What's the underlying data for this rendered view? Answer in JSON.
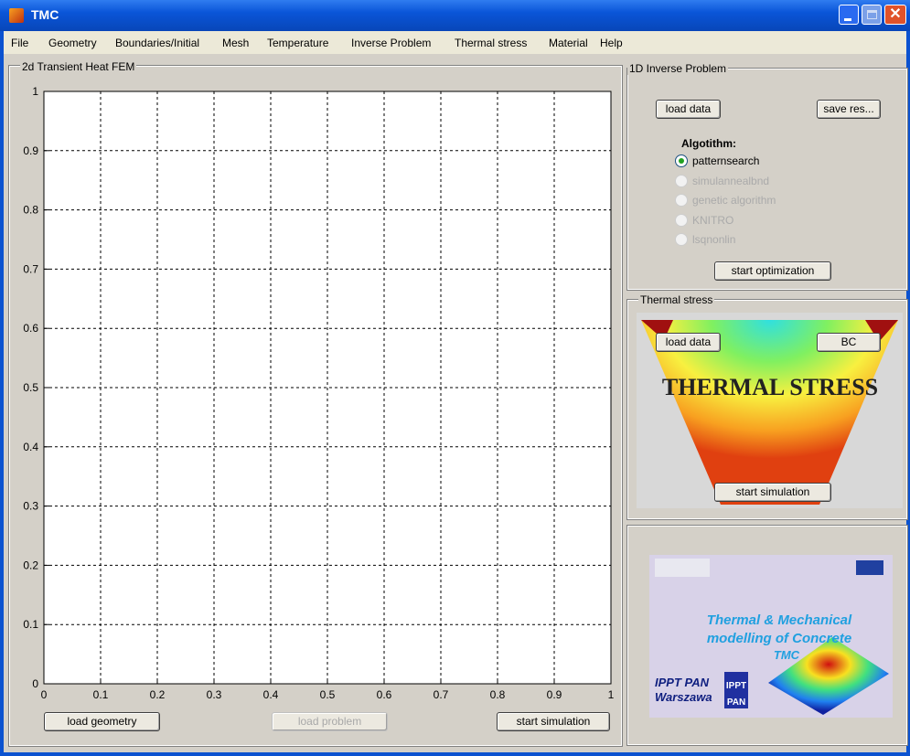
{
  "window": {
    "title": "TMC"
  },
  "menu": [
    "File",
    "Geometry",
    "Boundaries/Initial",
    "Mesh",
    "Temperature",
    "Inverse Problem",
    "Thermal stress",
    "Material",
    "Help"
  ],
  "heat_panel": {
    "title": "2d Transient Heat FEM",
    "axes": {
      "xlim": [
        0,
        1
      ],
      "ylim": [
        0,
        1
      ],
      "xticks": [
        0,
        0.1,
        0.2,
        0.3,
        0.4,
        0.5,
        0.6,
        0.7,
        0.8,
        0.9,
        1
      ],
      "yticks": [
        0,
        0.1,
        0.2,
        0.3,
        0.4,
        0.5,
        0.6,
        0.7,
        0.8,
        0.9,
        1
      ],
      "grid": true
    },
    "buttons": [
      {
        "label": "load geometry",
        "enabled": true
      },
      {
        "label": "load problem",
        "enabled": false
      },
      {
        "label": "start simulation",
        "enabled": true
      }
    ]
  },
  "inverse_panel": {
    "title": "1D Inverse Problem",
    "buttons": [
      {
        "label": "load data",
        "enabled": true
      },
      {
        "label": "save res...",
        "enabled": true
      },
      {
        "label": "start optimization",
        "enabled": true
      }
    ],
    "algorithm_label": "Algotithm:",
    "algorithms": [
      {
        "label": "patternsearch",
        "enabled": true,
        "selected": true
      },
      {
        "label": "simulannealbnd",
        "enabled": false,
        "selected": false
      },
      {
        "label": "genetic algorithm",
        "enabled": false,
        "selected": false
      },
      {
        "label": "KNITRO",
        "enabled": false,
        "selected": false
      },
      {
        "label": "lsqnonlin",
        "enabled": false,
        "selected": false
      }
    ]
  },
  "stress_panel": {
    "title": "Thermal stress",
    "image_title": "THERMAL STRESS",
    "buttons": [
      {
        "label": "load data",
        "enabled": true
      },
      {
        "label": "BC",
        "enabled": true
      },
      {
        "label": "start simulation",
        "enabled": true
      }
    ]
  },
  "logo": {
    "lines": [
      "Thermal & Mechanical",
      "modelling of Concrete",
      "TMC"
    ],
    "institute": "IPPT PAN",
    "city": "Warszawa",
    "mark": [
      "IPPT",
      "PAN"
    ]
  }
}
